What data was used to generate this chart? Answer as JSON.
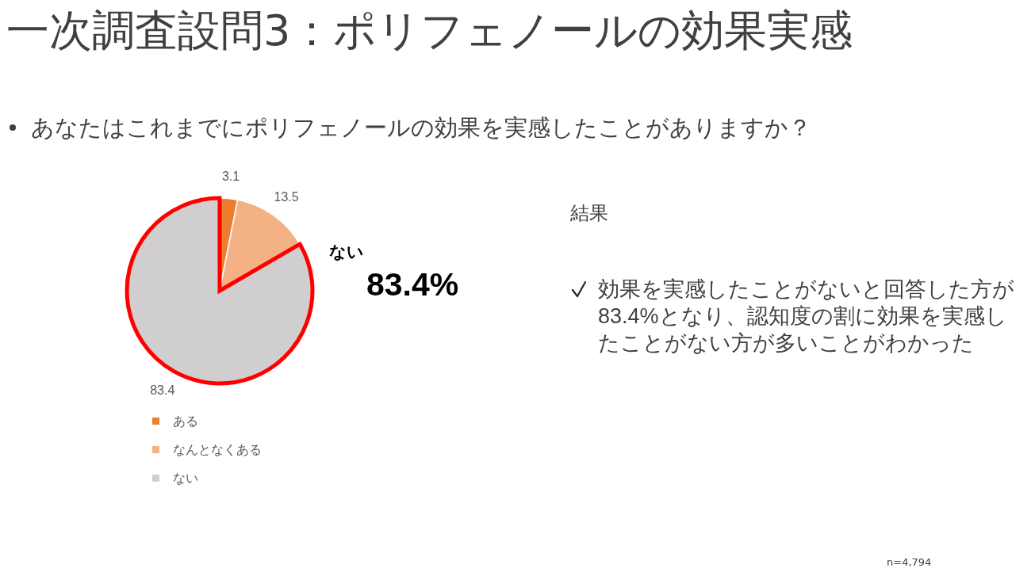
{
  "chart_data": {
    "type": "pie",
    "title": "一次調査設問3：ポリフェノールの効果実感",
    "subtitle": "あなたはこれまでにポリフェノールの効果を実感したことがありますか？",
    "categories": [
      "ある",
      "なんとなくある",
      "ない"
    ],
    "values": [
      3.1,
      13.5,
      83.4
    ],
    "colors": [
      "#ed7d31",
      "#f4b183",
      "#d0cece"
    ],
    "data_labels": true,
    "legend": "bottom",
    "annotations": [
      {
        "text": "ない",
        "x": "ない"
      },
      "83.4%",
      "結果",
      "効果を実感したことがないと回答した方が83.4%となり、認知度の割に効果を実感したことがない方が多いことがわかった",
      "n=4,794"
    ]
  }
}
